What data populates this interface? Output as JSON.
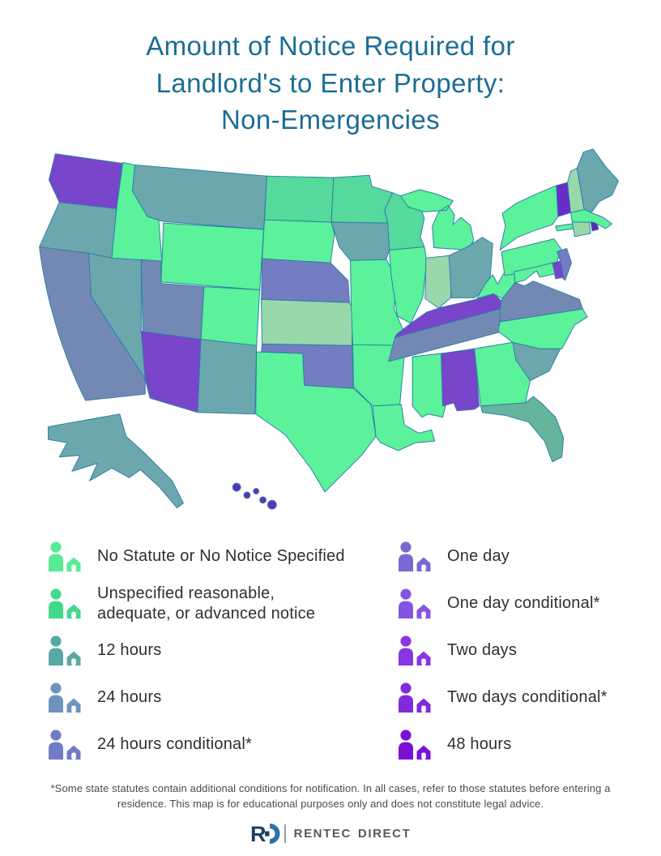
{
  "title": {
    "lines": [
      "Amount of Notice Required for",
      "Landlord's to Enter Property:",
      "Non-Emergencies"
    ]
  },
  "legend": {
    "left": [
      {
        "lines": [
          "No Statute or No Notice Specified"
        ],
        "color": "#57EB95"
      },
      {
        "lines": [
          "Unspecified reasonable,",
          "adequate, or advanced notice"
        ],
        "color": "#43D98D"
      },
      {
        "lines": [
          "12 hours"
        ],
        "color": "#58A9A3"
      },
      {
        "lines": [
          "24 hours"
        ],
        "color": "#6E93BE"
      },
      {
        "lines": [
          "24 hours conditional*"
        ],
        "color": "#6F7CC5"
      }
    ],
    "right": [
      {
        "lines": [
          "One day"
        ],
        "color": "#7A68D4"
      },
      {
        "lines": [
          "One day conditional*"
        ],
        "color": "#8554E4"
      },
      {
        "lines": [
          "Two days"
        ],
        "color": "#8A35E3"
      },
      {
        "lines": [
          "Two days conditional*"
        ],
        "color": "#7F2BDB"
      },
      {
        "lines": [
          "48 hours"
        ],
        "color": "#7A10D8"
      }
    ]
  },
  "footnote": {
    "text": "*Some state statutes contain additional conditions for notification. In all cases, refer to those statutes before entering a residence. This map is for educational purposes only and does not constitute legal advice."
  },
  "logo": {
    "word1": "RENTEC",
    "word2": "DIRECT",
    "mark_navy": "#1d3e5e",
    "mark_blue": "#2f72a7"
  },
  "chart_data": {
    "type": "choropleth-map",
    "title": "Amount of Notice Required for Landlord's to Enter Property: Non-Emergencies",
    "legend_position": "bottom",
    "categories": [
      {
        "label": "No Statute or No Notice Specified",
        "map_color": "#5BF29B"
      },
      {
        "label": "Unspecified reasonable, adequate, or advanced notice",
        "map_color": "#56D99C"
      },
      {
        "label": "12 hours",
        "map_color": "#66B49D"
      },
      {
        "label": "24 hours",
        "map_color": "#6CA7AE"
      },
      {
        "label": "24 hours conditional*",
        "map_color": "#6F7CC5"
      },
      {
        "label": "One day",
        "map_color": "#747CC2"
      },
      {
        "label": "One day conditional*",
        "map_color": "#8554E4"
      },
      {
        "label": "Two days",
        "map_color": "#7845CB"
      },
      {
        "label": "Two days conditional*",
        "map_color": "#7F2BDB"
      },
      {
        "label": "48 hours",
        "map_color": "#6A2CC8"
      }
    ],
    "states": [
      {
        "id": "WA",
        "name": "Washington",
        "category": "Two days",
        "fill": "#7845CB"
      },
      {
        "id": "OR",
        "name": "Oregon",
        "category": "24 hours",
        "fill": "#6CA7AE"
      },
      {
        "id": "CA",
        "name": "California",
        "category": "24 hours",
        "fill": "#7389B4"
      },
      {
        "id": "NV",
        "name": "Nevada",
        "category": "24 hours",
        "fill": "#6CA7AE"
      },
      {
        "id": "ID",
        "name": "Idaho",
        "category": "No Statute or No Notice Specified",
        "fill": "#5BF29B"
      },
      {
        "id": "MT",
        "name": "Montana",
        "category": "24 hours",
        "fill": "#6CA7AE"
      },
      {
        "id": "WY",
        "name": "Wyoming",
        "category": "No Statute or No Notice Specified",
        "fill": "#5BF29B"
      },
      {
        "id": "UT",
        "name": "Utah",
        "category": "24 hours",
        "fill": "#7389B4"
      },
      {
        "id": "CO",
        "name": "Colorado",
        "category": "No Statute or No Notice Specified",
        "fill": "#5BF29B"
      },
      {
        "id": "AZ",
        "name": "Arizona",
        "category": "Two days",
        "fill": "#7845CB"
      },
      {
        "id": "NM",
        "name": "New Mexico",
        "category": "24 hours",
        "fill": "#6CA7AE"
      },
      {
        "id": "ND",
        "name": "North Dakota",
        "category": "Unspecified reasonable, adequate, or advanced notice",
        "fill": "#56D99C"
      },
      {
        "id": "SD",
        "name": "South Dakota",
        "category": "No Statute or No Notice Specified",
        "fill": "#5BF29B"
      },
      {
        "id": "NE",
        "name": "Nebraska",
        "category": "One day",
        "fill": "#747CC2"
      },
      {
        "id": "KS",
        "name": "Kansas",
        "category": "Unspecified reasonable, adequate, or advanced notice",
        "fill": "#98D8AA"
      },
      {
        "id": "OK",
        "name": "Oklahoma",
        "category": "One day",
        "fill": "#747CC2"
      },
      {
        "id": "TX",
        "name": "Texas",
        "category": "No Statute or No Notice Specified",
        "fill": "#5BF29B"
      },
      {
        "id": "MN",
        "name": "Minnesota",
        "category": "Unspecified reasonable, adequate, or advanced notice",
        "fill": "#56D99C"
      },
      {
        "id": "IA",
        "name": "Iowa",
        "category": "24 hours",
        "fill": "#6CA7AE"
      },
      {
        "id": "MO",
        "name": "Missouri",
        "category": "No Statute or No Notice Specified",
        "fill": "#5BF29B"
      },
      {
        "id": "AR",
        "name": "Arkansas",
        "category": "No Statute or No Notice Specified",
        "fill": "#5BF29B"
      },
      {
        "id": "LA",
        "name": "Louisiana",
        "category": "No Statute or No Notice Specified",
        "fill": "#5BF29B"
      },
      {
        "id": "WI",
        "name": "Wisconsin",
        "category": "Unspecified reasonable, adequate, or advanced notice",
        "fill": "#56D99C"
      },
      {
        "id": "IL",
        "name": "Illinois",
        "category": "No Statute or No Notice Specified",
        "fill": "#5BF29B"
      },
      {
        "id": "MI",
        "name": "Michigan",
        "category": "No Statute or No Notice Specified",
        "fill": "#5BF29B"
      },
      {
        "id": "IN",
        "name": "Indiana",
        "category": "Unspecified reasonable, adequate, or advanced notice",
        "fill": "#98D8AA"
      },
      {
        "id": "OH",
        "name": "Ohio",
        "category": "24 hours",
        "fill": "#6CA7AE"
      },
      {
        "id": "KY",
        "name": "Kentucky",
        "category": "Two days",
        "fill": "#7845CB"
      },
      {
        "id": "TN",
        "name": "Tennessee",
        "category": "24 hours",
        "fill": "#7389B4"
      },
      {
        "id": "MS",
        "name": "Mississippi",
        "category": "No Statute or No Notice Specified",
        "fill": "#5BF29B"
      },
      {
        "id": "AL",
        "name": "Alabama",
        "category": "Two days",
        "fill": "#7845CB"
      },
      {
        "id": "GA",
        "name": "Georgia",
        "category": "No Statute or No Notice Specified",
        "fill": "#5BF29B"
      },
      {
        "id": "FL",
        "name": "Florida",
        "category": "12 hours",
        "fill": "#66B49D"
      },
      {
        "id": "SC",
        "name": "South Carolina",
        "category": "24 hours",
        "fill": "#6CA7AE"
      },
      {
        "id": "NC",
        "name": "North Carolina",
        "category": "No Statute or No Notice Specified",
        "fill": "#5BF29B"
      },
      {
        "id": "VA",
        "name": "Virginia",
        "category": "24 hours",
        "fill": "#7389B4"
      },
      {
        "id": "WV",
        "name": "West Virginia",
        "category": "No Statute or No Notice Specified",
        "fill": "#5BF29B"
      },
      {
        "id": "PA",
        "name": "Pennsylvania",
        "category": "No Statute or No Notice Specified",
        "fill": "#5BF29B"
      },
      {
        "id": "NY",
        "name": "New York",
        "category": "No Statute or No Notice Specified",
        "fill": "#5BF29B"
      },
      {
        "id": "NJ",
        "name": "New Jersey",
        "category": "One day",
        "fill": "#747CC2"
      },
      {
        "id": "DE",
        "name": "Delaware",
        "category": "Two days",
        "fill": "#7C42CE"
      },
      {
        "id": "MD",
        "name": "Maryland",
        "category": "No Statute or No Notice Specified",
        "fill": "#5BF29B"
      },
      {
        "id": "CT",
        "name": "Connecticut",
        "category": "Unspecified reasonable, adequate, or advanced notice",
        "fill": "#98D8AA"
      },
      {
        "id": "RI",
        "name": "Rhode Island",
        "category": "Two days",
        "fill": "#5B2DB3"
      },
      {
        "id": "MA",
        "name": "Massachusetts",
        "category": "No Statute or No Notice Specified",
        "fill": "#5BF29B"
      },
      {
        "id": "VT",
        "name": "Vermont",
        "category": "48 hours",
        "fill": "#6A2CC8"
      },
      {
        "id": "NH",
        "name": "New Hampshire",
        "category": "Unspecified reasonable, adequate, or advanced notice",
        "fill": "#98D8AA"
      },
      {
        "id": "ME",
        "name": "Maine",
        "category": "24 hours",
        "fill": "#6CA7AE"
      },
      {
        "id": "AK",
        "name": "Alaska",
        "category": "24 hours",
        "fill": "#6CA7AE"
      },
      {
        "id": "HI",
        "name": "Hawaii",
        "category": "Two days",
        "fill": "#6131BE"
      }
    ]
  }
}
